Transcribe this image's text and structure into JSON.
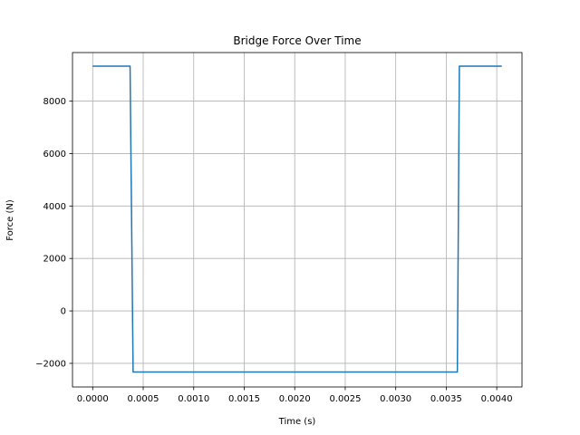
{
  "chart_data": {
    "type": "line",
    "title": "Bridge Force Over Time",
    "xlabel": "Time (s)",
    "ylabel": "Force (N)",
    "xlim": [
      -0.0002,
      0.00425
    ],
    "ylim": [
      -2900,
      9850
    ],
    "grid": true,
    "xticks": [
      0.0,
      0.0005,
      0.001,
      0.0015,
      0.002,
      0.0025,
      0.003,
      0.0035,
      0.004
    ],
    "xtick_labels": [
      "0.0000",
      "0.0005",
      "0.0010",
      "0.0015",
      "0.0020",
      "0.0025",
      "0.0030",
      "0.0035",
      "0.0040"
    ],
    "yticks": [
      -2000,
      0,
      2000,
      4000,
      6000,
      8000
    ],
    "ytick_labels": [
      "−2000",
      "0",
      "2000",
      "4000",
      "6000",
      "8000"
    ],
    "series": [
      {
        "color": "#1f77b4",
        "x": [
          0.0,
          0.00037,
          0.0004,
          0.00361,
          0.00363,
          0.00405
        ],
        "y": [
          9330,
          9330,
          -2330,
          -2330,
          9330,
          9330
        ]
      }
    ]
  }
}
